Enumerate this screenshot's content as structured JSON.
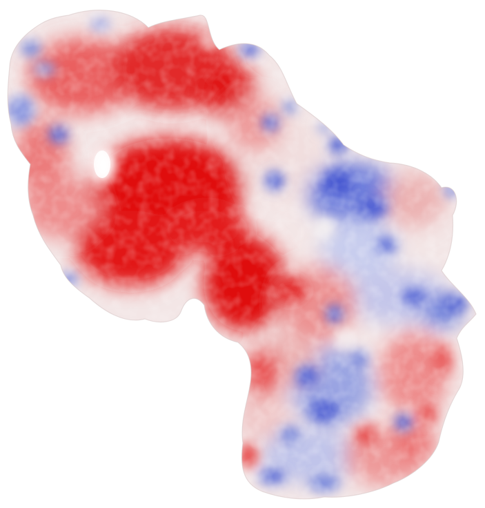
{
  "scene": {
    "subject": "molecular-surface",
    "background_color": "#ffffff",
    "palette": {
      "negative_strong": "#e30a0a",
      "negative": "#e84a4a",
      "negative_light": "#f2a0a0",
      "neutral": "#f4eeee",
      "positive_light": "#b9bfe6",
      "positive": "#5c6fd8",
      "positive_strong": "#3f50d0"
    },
    "regions": [
      "upper-lobe-red",
      "central-deep-red-cleft",
      "lower-right-blue-domain",
      "left-blue-patches"
    ]
  }
}
